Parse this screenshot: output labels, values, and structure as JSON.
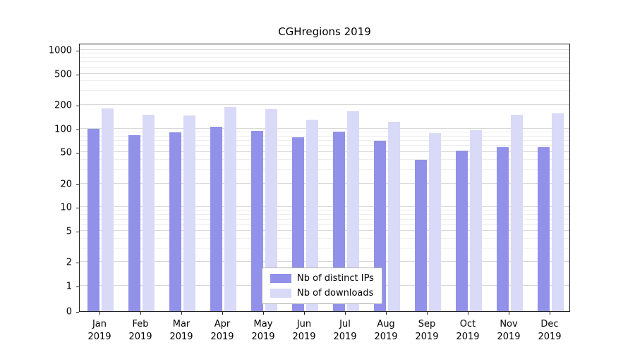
{
  "chart_data": {
    "type": "bar",
    "title": "CGHregions 2019",
    "categories": [
      "Jan",
      "Feb",
      "Mar",
      "Apr",
      "May",
      "Jun",
      "Jul",
      "Aug",
      "Sep",
      "Oct",
      "Nov",
      "Dec"
    ],
    "year_label": "2019",
    "series": [
      {
        "name": "Nb of distinct IPs",
        "color": "#9191ea",
        "values": [
          100,
          82,
          90,
          105,
          94,
          78,
          92,
          70,
          40,
          52,
          58,
          58
        ]
      },
      {
        "name": "Nb of downloads",
        "color": "#d9d9f8",
        "values": [
          180,
          150,
          148,
          190,
          178,
          130,
          165,
          122,
          88,
          95,
          150,
          155
        ]
      }
    ],
    "yticks": [
      0,
      1,
      2,
      5,
      10,
      20,
      50,
      100,
      200,
      500,
      1000
    ],
    "y_minor_ticks": [
      3,
      4,
      6,
      7,
      8,
      9,
      30,
      40,
      60,
      70,
      80,
      90,
      300,
      400,
      600,
      700,
      800,
      900
    ],
    "y_scale": "symlog",
    "ylim": [
      0,
      1400
    ],
    "grid": true,
    "legend_position": "lower center",
    "colors": {
      "grid_major": "#d9d9d9",
      "grid_minor": "#ededed",
      "axis": "#222222",
      "background": "#ffffff"
    }
  }
}
